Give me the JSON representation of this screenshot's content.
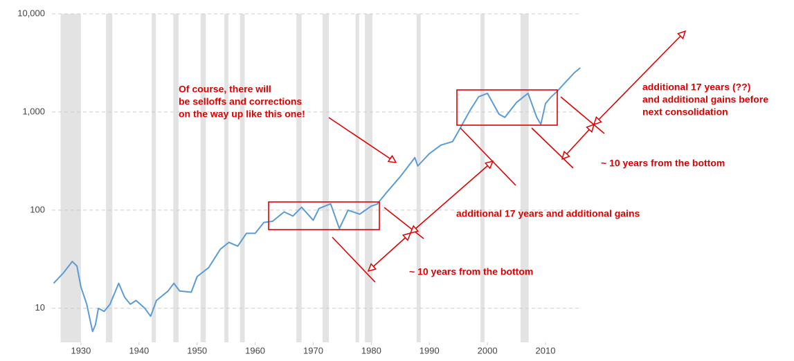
{
  "chart_data": {
    "type": "line",
    "log_scale": true,
    "grid": true,
    "xlim": [
      1925,
      2016.2
    ],
    "ylim": [
      4.5,
      10000
    ],
    "xticks": [
      1930,
      1940,
      1950,
      1960,
      1970,
      1980,
      1990,
      2000,
      2010
    ],
    "yticks": [
      {
        "value": 10000,
        "label": "10,000"
      },
      {
        "value": 1000,
        "label": "1,000"
      },
      100,
      10
    ],
    "recession_color": "#e3e3e3",
    "recessions": [
      [
        1926.5,
        1930.0
      ],
      [
        1934.3,
        1935.4
      ],
      [
        1942.2,
        1942.9
      ],
      [
        1945.9,
        1946.8
      ],
      [
        1950.6,
        1951.5
      ],
      [
        1954.7,
        1955.4
      ],
      [
        1957.4,
        1958.2
      ],
      [
        1967.1,
        1968.0
      ],
      [
        1971.6,
        1972.7
      ],
      [
        1977.3,
        1977.9
      ],
      [
        1978.9,
        1980.2
      ],
      [
        1987.8,
        1988.5
      ],
      [
        1998.8,
        1999.5
      ],
      [
        2005.7,
        2007.1
      ]
    ],
    "series": [
      {
        "color": "#5b9bd5",
        "x": [
          1925.3,
          1927,
          1928.5,
          1929.3,
          1930,
          1931,
          1932,
          1932.5,
          1933,
          1934,
          1935,
          1936.5,
          1937.5,
          1938.5,
          1939.5,
          1941,
          1942,
          1943,
          1945,
          1946,
          1947,
          1949,
          1950,
          1952,
          1954,
          1955.5,
          1957,
          1958.5,
          1960,
          1961.5,
          1963,
          1965,
          1966.5,
          1968,
          1970,
          1971,
          1973,
          1974.5,
          1976,
          1978,
          1980,
          1981,
          1982.5,
          1985,
          1987.5,
          1988,
          1990,
          1992,
          1994,
          1995,
          1997,
          1998.5,
          2000,
          2002,
          2003,
          2005,
          2007,
          2008.5,
          2009.2,
          2010,
          2011,
          2012,
          2013.5,
          2015,
          2016
        ],
        "values": [
          18,
          23,
          30,
          27,
          16.5,
          11,
          5.8,
          6.8,
          10,
          9.3,
          11,
          18,
          13,
          11,
          12,
          10,
          8.3,
          12,
          15,
          18,
          15,
          14.6,
          21,
          26,
          40,
          47,
          43,
          58,
          58,
          75,
          77,
          96,
          87,
          107,
          79,
          104,
          116,
          65,
          100,
          91,
          110,
          115,
          148,
          220,
          343,
          282,
          376,
          460,
          500,
          634,
          1035,
          1430,
          1550,
          950,
          880,
          1250,
          1550,
          880,
          750,
          1220,
          1430,
          1620,
          2030,
          2520,
          2820
        ]
      }
    ],
    "annotations": [
      {
        "lines": [
          "Of course, there will",
          "be selloffs and corrections",
          "on the way up like this one!"
        ]
      },
      {
        "lines": [
          "additional 17 years (??)",
          "and additional gains before",
          "next consolidation"
        ]
      },
      {
        "lines": [
          "~ 10 years from the bottom"
        ]
      },
      {
        "lines": [
          "additional 17 years and additional gains"
        ]
      },
      {
        "lines": [
          "~ 10 years from the bottom"
        ]
      }
    ]
  }
}
